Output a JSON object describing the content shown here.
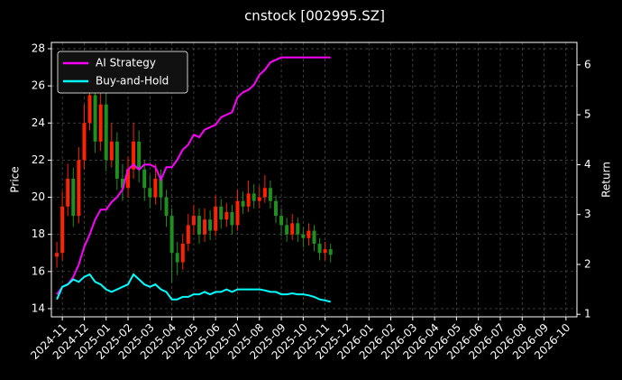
{
  "chart_data": {
    "type": "candlestick",
    "title": "cnstock [002995.SZ]",
    "ylabel": "Price",
    "y2label": "Return",
    "x": [
      -0.25,
      0,
      0.25,
      0.5,
      0.75,
      1,
      1.25,
      1.5,
      1.75,
      2,
      2.25,
      2.5,
      2.75,
      3,
      3.25,
      3.5,
      3.75,
      4,
      4.25,
      4.5,
      4.75,
      5,
      5.25,
      5.5,
      5.75,
      6,
      6.25,
      6.5,
      6.75,
      7,
      7.25,
      7.5,
      7.75,
      8,
      8.25,
      8.5,
      8.75,
      9,
      9.25,
      9.5,
      9.75,
      10,
      10.25,
      10.5,
      10.75,
      11,
      11.25,
      11.5,
      11.75,
      12,
      12.25
    ],
    "open": [
      16.8,
      17,
      19.5,
      21,
      19,
      22,
      24,
      25.5,
      23,
      25,
      22,
      23,
      21,
      20.5,
      21.5,
      23,
      21.5,
      20.5,
      20,
      21,
      20,
      19,
      17,
      16.5,
      17.5,
      18.5,
      19,
      18,
      18.8,
      18.2,
      19.5,
      18.8,
      19.2,
      18.5,
      19.8,
      19.5,
      20.2,
      19.8,
      20,
      20.5,
      19.8,
      19,
      18.5,
      18,
      18.6,
      18,
      17.8,
      18.2,
      17.5,
      17,
      17.2
    ],
    "high": [
      17.6,
      20.3,
      21.8,
      21.6,
      22.7,
      25,
      26.8,
      26.2,
      26,
      25.6,
      24,
      23.5,
      21.8,
      22.2,
      24,
      23.6,
      22,
      21.2,
      21.8,
      21.5,
      20.4,
      19.4,
      17.6,
      18,
      19.1,
      19.6,
      19.4,
      19.4,
      19.3,
      20.1,
      19.9,
      19.7,
      19.6,
      20.4,
      20.3,
      20.9,
      20.7,
      20.6,
      21.2,
      20.9,
      20.1,
      19.4,
      18.9,
      19.1,
      18.9,
      18.4,
      18.6,
      18.5,
      17.8,
      17.6,
      17.5
    ],
    "low": [
      16.2,
      16.6,
      19,
      18.4,
      18.6,
      21.5,
      23.6,
      22.4,
      22.5,
      21.4,
      21.6,
      20.4,
      19.8,
      20,
      21,
      20.8,
      19.8,
      19.4,
      19.6,
      19.3,
      18.4,
      15.4,
      15.8,
      16.1,
      17.1,
      18,
      17.5,
      17.6,
      17.7,
      17.9,
      18.3,
      18.4,
      18,
      18.2,
      19.1,
      19.2,
      19.4,
      19.4,
      19.7,
      19.4,
      18.6,
      17.9,
      17.6,
      17.7,
      17.6,
      17.3,
      17.4,
      17.1,
      16.6,
      16.6,
      16.5
    ],
    "close": [
      17,
      19.5,
      21,
      19,
      22,
      24,
      25.5,
      23,
      25,
      22,
      23,
      21,
      20.5,
      21.5,
      23,
      21.5,
      20.5,
      20,
      21,
      20,
      19,
      17,
      16.5,
      17.5,
      18.5,
      19,
      18,
      18.8,
      18.2,
      19.5,
      18.8,
      19.2,
      18.5,
      19.8,
      19.5,
      20.2,
      19.8,
      20,
      20.5,
      19.8,
      19,
      18.5,
      18,
      18.6,
      18,
      17.8,
      18.2,
      17.5,
      17,
      17.2,
      16.9
    ],
    "up_color": "#ff2200",
    "down_color": "#1f8f1f",
    "series": [
      {
        "name": "AI Strategy",
        "color": "#ff00ff",
        "axis": "y2",
        "values": [
          1.4,
          1.55,
          1.6,
          1.75,
          2.0,
          2.35,
          2.6,
          2.9,
          3.1,
          3.1,
          3.25,
          3.35,
          3.5,
          3.9,
          4.0,
          3.9,
          4.0,
          4.0,
          3.95,
          3.7,
          3.95,
          3.95,
          4.1,
          4.3,
          4.4,
          4.6,
          4.55,
          4.7,
          4.75,
          4.8,
          4.95,
          5.0,
          5.05,
          5.35,
          5.45,
          5.5,
          5.6,
          5.8,
          5.9,
          6.05,
          6.1,
          6.15,
          6.15,
          6.15,
          6.15,
          6.15,
          6.15,
          6.15,
          6.15,
          6.15,
          6.15
        ]
      },
      {
        "name": "Buy-and-Hold",
        "color": "#00ffff",
        "axis": "y2",
        "values": [
          1.3,
          1.55,
          1.6,
          1.7,
          1.65,
          1.75,
          1.8,
          1.65,
          1.6,
          1.5,
          1.45,
          1.5,
          1.55,
          1.6,
          1.8,
          1.7,
          1.6,
          1.55,
          1.6,
          1.5,
          1.45,
          1.3,
          1.3,
          1.35,
          1.35,
          1.4,
          1.4,
          1.45,
          1.4,
          1.45,
          1.45,
          1.5,
          1.45,
          1.5,
          1.5,
          1.5,
          1.5,
          1.5,
          1.48,
          1.45,
          1.45,
          1.4,
          1.4,
          1.42,
          1.4,
          1.4,
          1.38,
          1.35,
          1.3,
          1.28,
          1.25
        ]
      }
    ],
    "xlim": [
      -0.5,
      23.5
    ],
    "ylim": [
      13.56,
      28.34
    ],
    "y2lim": [
      0.95,
      6.45
    ],
    "xticks": [
      {
        "value": 0,
        "label": "2024-11"
      },
      {
        "value": 1,
        "label": "2024-12"
      },
      {
        "value": 2,
        "label": "2025-01"
      },
      {
        "value": 3,
        "label": "2025-02"
      },
      {
        "value": 4,
        "label": "2025-03"
      },
      {
        "value": 5,
        "label": "2025-04"
      },
      {
        "value": 6,
        "label": "2025-05"
      },
      {
        "value": 7,
        "label": "2025-06"
      },
      {
        "value": 8,
        "label": "2025-07"
      },
      {
        "value": 9,
        "label": "2025-08"
      },
      {
        "value": 10,
        "label": "2025-09"
      },
      {
        "value": 11,
        "label": "2025-10"
      },
      {
        "value": 12,
        "label": "2025-11"
      },
      {
        "value": 13,
        "label": "2025-12"
      },
      {
        "value": 14,
        "label": "2026-01"
      },
      {
        "value": 15,
        "label": "2026-02"
      },
      {
        "value": 16,
        "label": "2026-03"
      },
      {
        "value": 17,
        "label": "2026-04"
      },
      {
        "value": 18,
        "label": "2026-05"
      },
      {
        "value": 19,
        "label": "2026-06"
      },
      {
        "value": 20,
        "label": "2026-07"
      },
      {
        "value": 21,
        "label": "2026-08"
      },
      {
        "value": 22,
        "label": "2026-09"
      },
      {
        "value": 23,
        "label": "2026-10"
      }
    ],
    "yticks": [
      14,
      16,
      18,
      20,
      22,
      24,
      26,
      28
    ],
    "y2ticks": [
      1,
      2,
      3,
      4,
      5,
      6
    ],
    "grid": true,
    "legend": "upper left"
  }
}
